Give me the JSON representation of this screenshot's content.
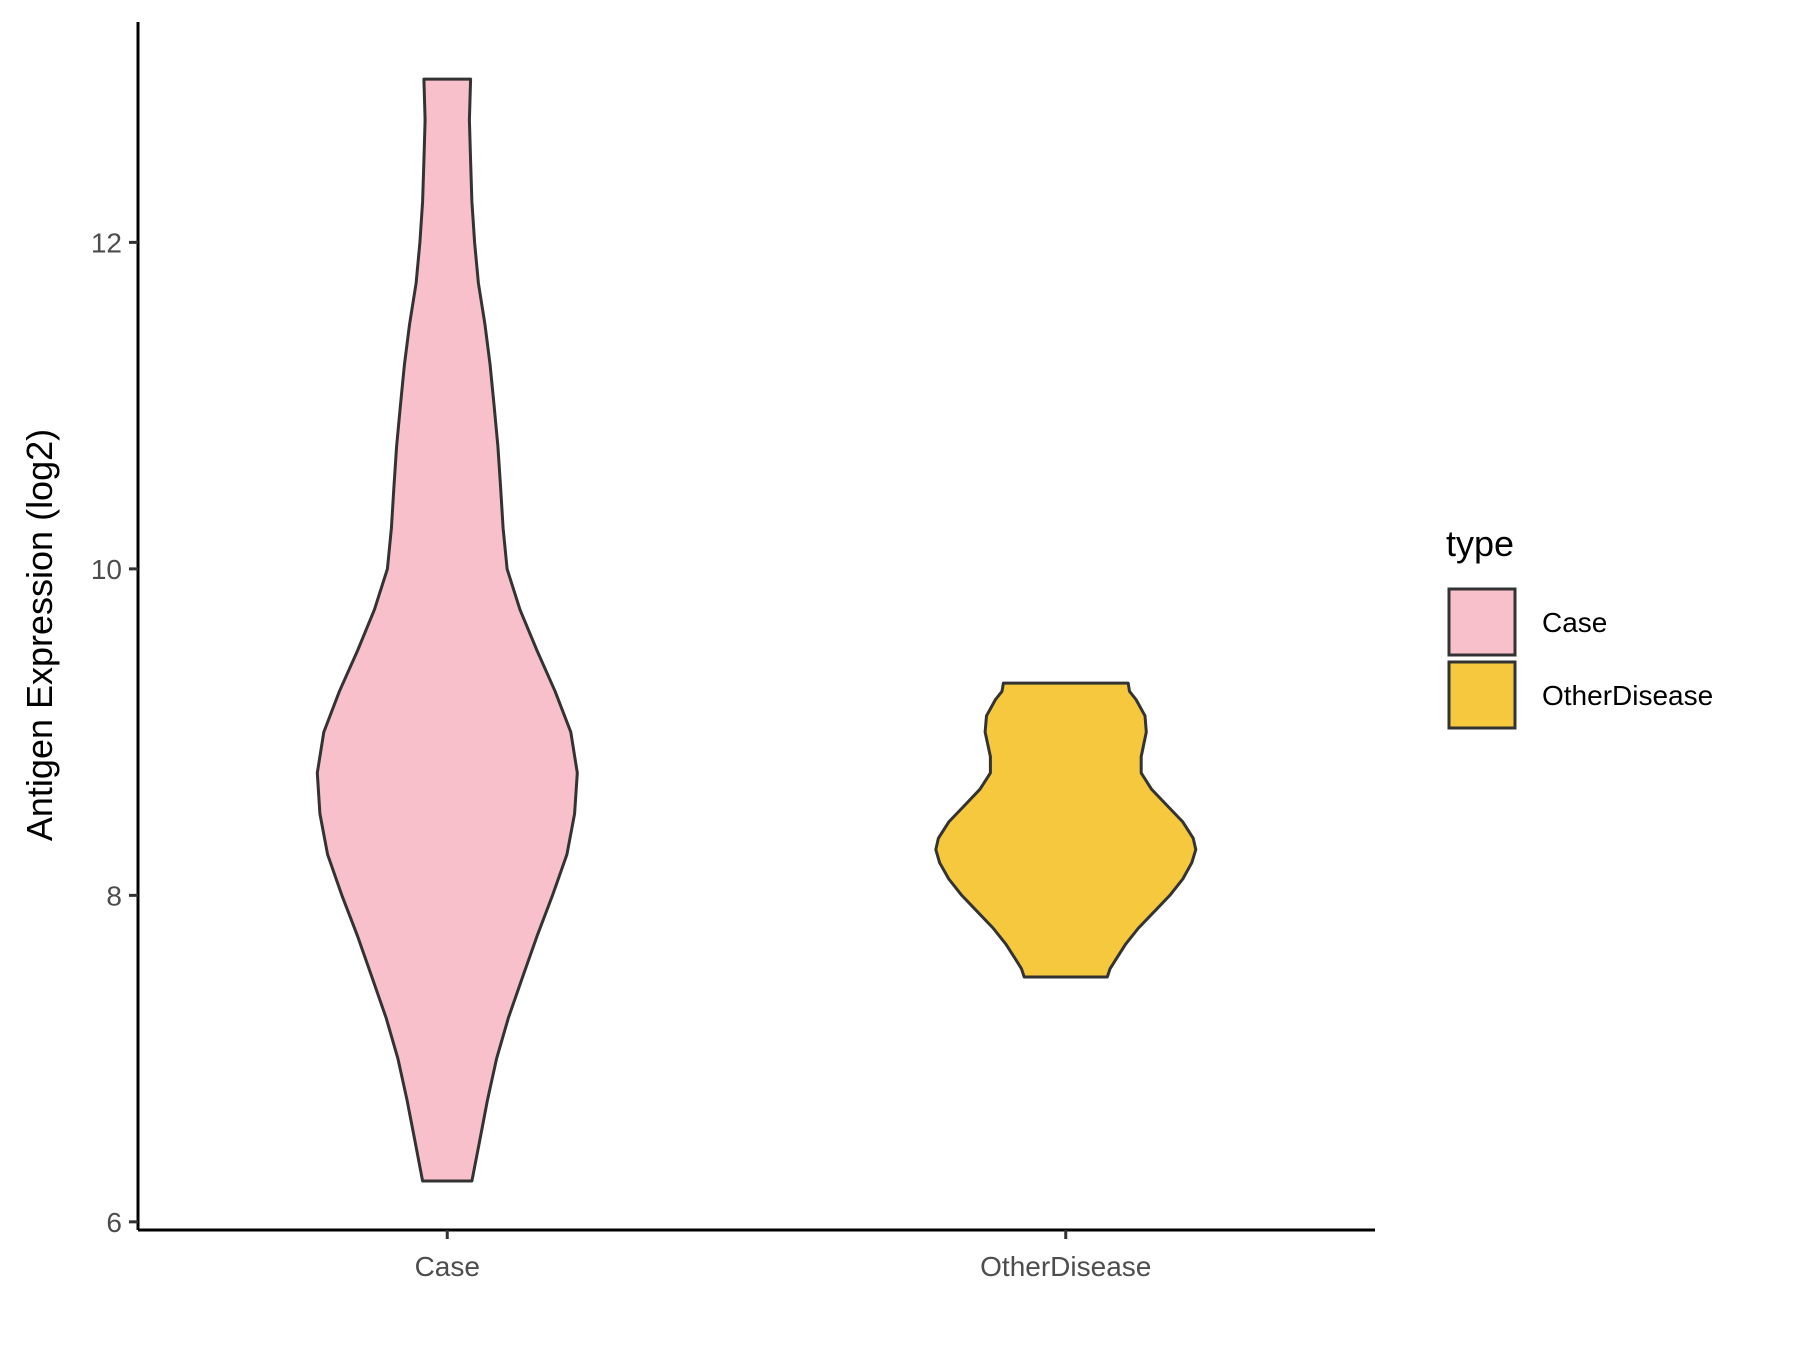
{
  "chart_data": {
    "type": "violin",
    "title": "",
    "xlabel": "",
    "ylabel": "Antigen Expression (log2)",
    "categories": [
      "Case",
      "OtherDisease"
    ],
    "ylim": [
      5.95,
      13.35
    ],
    "yticks": [
      6,
      8,
      10,
      12
    ],
    "grid": false,
    "legend": {
      "title": "type",
      "position": "right",
      "entries": [
        {
          "label": "Case",
          "color": "#F8C0CB"
        },
        {
          "label": "OtherDisease",
          "color": "#F6C83E"
        }
      ]
    },
    "series": [
      {
        "name": "Case",
        "color": "#F8C0CB",
        "min": 6.25,
        "max": 13.0,
        "density": [
          [
            6.25,
            0.19
          ],
          [
            6.5,
            0.25
          ],
          [
            6.75,
            0.31
          ],
          [
            7.0,
            0.38
          ],
          [
            7.25,
            0.47
          ],
          [
            7.5,
            0.58
          ],
          [
            7.75,
            0.69
          ],
          [
            8.0,
            0.81
          ],
          [
            8.25,
            0.92
          ],
          [
            8.5,
            0.98
          ],
          [
            8.75,
            1.0
          ],
          [
            9.0,
            0.95
          ],
          [
            9.25,
            0.83
          ],
          [
            9.5,
            0.69
          ],
          [
            9.75,
            0.56
          ],
          [
            10.0,
            0.46
          ],
          [
            10.25,
            0.43
          ],
          [
            10.5,
            0.41
          ],
          [
            10.75,
            0.39
          ],
          [
            11.0,
            0.36
          ],
          [
            11.25,
            0.33
          ],
          [
            11.5,
            0.29
          ],
          [
            11.75,
            0.24
          ],
          [
            12.0,
            0.21
          ],
          [
            12.25,
            0.19
          ],
          [
            12.5,
            0.18
          ],
          [
            12.75,
            0.17
          ],
          [
            13.0,
            0.18
          ]
        ]
      },
      {
        "name": "OtherDisease",
        "color": "#F6C83E",
        "min": 7.5,
        "max": 9.3,
        "density": [
          [
            7.5,
            0.32
          ],
          [
            7.55,
            0.34
          ],
          [
            7.6,
            0.38
          ],
          [
            7.7,
            0.46
          ],
          [
            7.8,
            0.56
          ],
          [
            7.9,
            0.68
          ],
          [
            8.0,
            0.8
          ],
          [
            8.1,
            0.9
          ],
          [
            8.2,
            0.97
          ],
          [
            8.28,
            1.0
          ],
          [
            8.35,
            0.98
          ],
          [
            8.45,
            0.9
          ],
          [
            8.55,
            0.78
          ],
          [
            8.65,
            0.66
          ],
          [
            8.75,
            0.58
          ],
          [
            8.85,
            0.58
          ],
          [
            9.0,
            0.62
          ],
          [
            9.1,
            0.61
          ],
          [
            9.2,
            0.54
          ],
          [
            9.25,
            0.49
          ],
          [
            9.3,
            0.48
          ]
        ]
      }
    ]
  }
}
